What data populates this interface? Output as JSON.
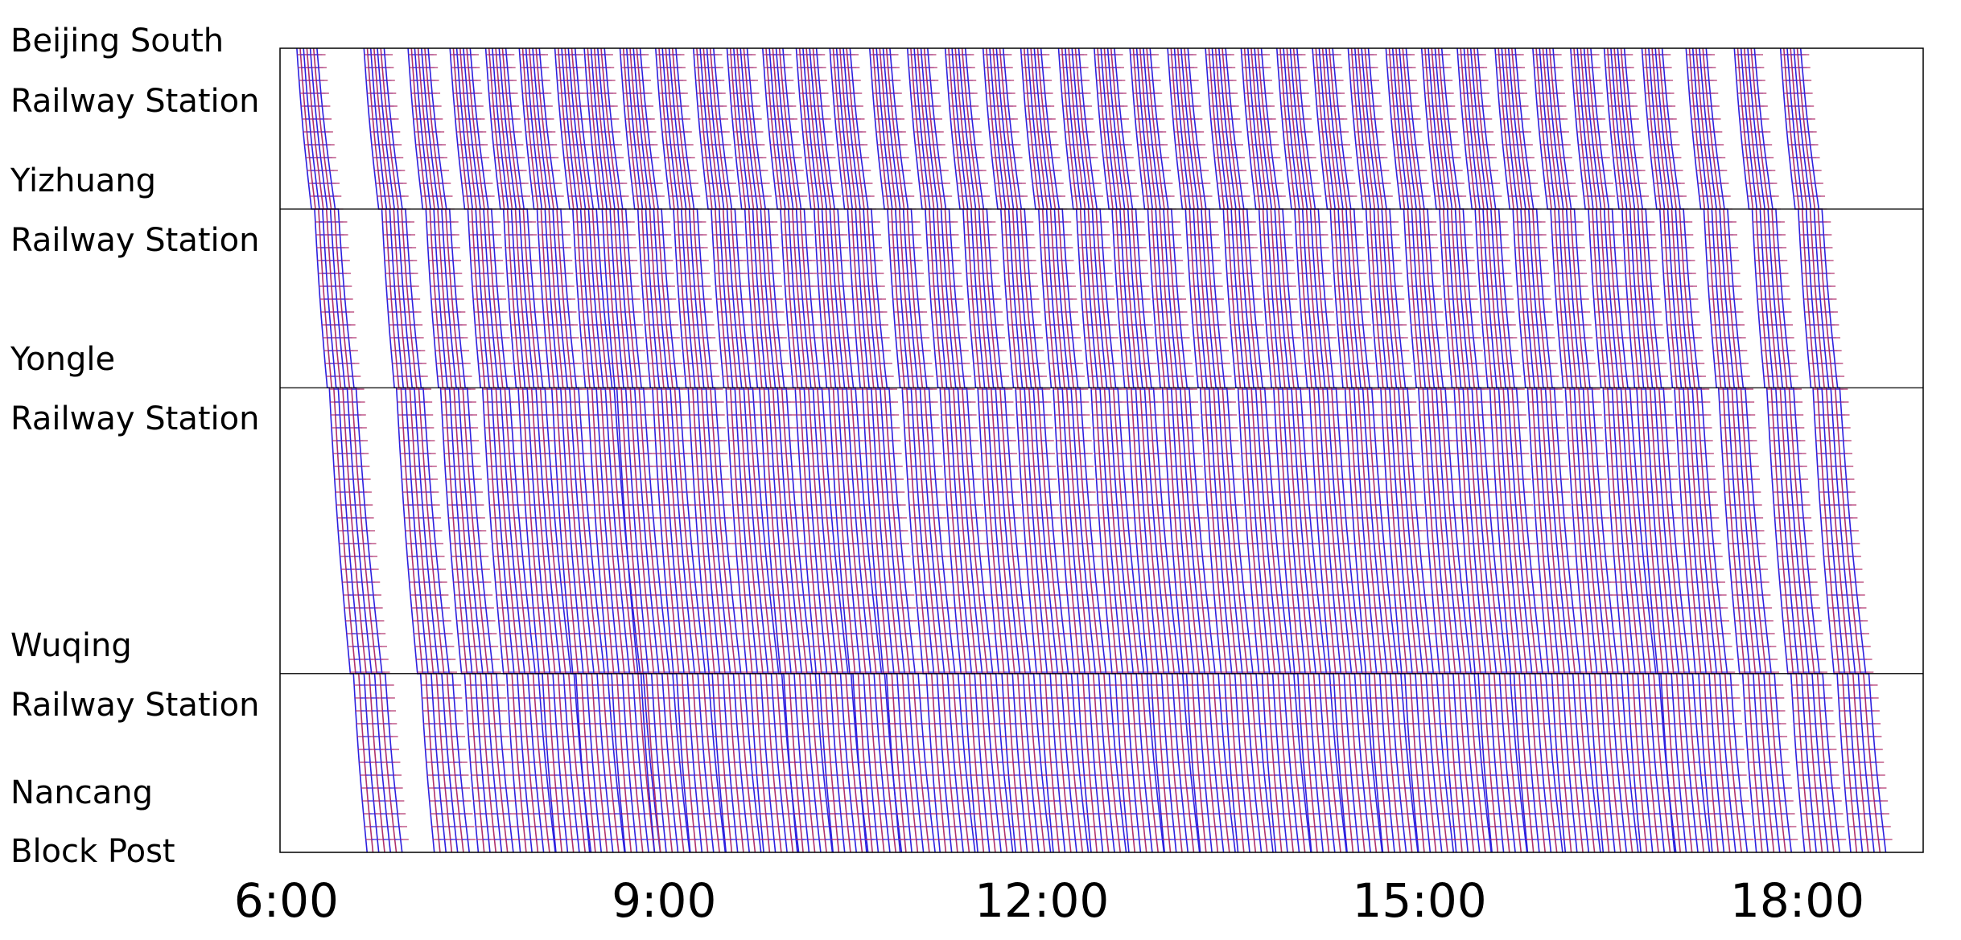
{
  "chart_data": {
    "type": "line",
    "title": "",
    "xlabel": "",
    "ylabel": "",
    "x_ticks": [
      "6:00",
      "9:00",
      "12:00",
      "15:00",
      "18:00"
    ],
    "xlim": [
      "5:57",
      "19:00"
    ],
    "stations": [
      {
        "name": [
          "Beijing South",
          "Railway Station"
        ],
        "km": 0
      },
      {
        "name": [
          "Yizhuang",
          "Railway Station"
        ],
        "km": 18
      },
      {
        "name": [
          "Yongle",
          "Railway Station"
        ],
        "km": 38
      },
      {
        "name": [
          "Wuqing",
          "Railway Station"
        ],
        "km": 70
      },
      {
        "name": [
          "Nancang",
          "Block Post"
        ],
        "km": 90
      }
    ],
    "grid": "station lines only",
    "series_colors": {
      "train_path": "#2b1fe0",
      "train_path_alt": "#b0306a"
    },
    "train_groups_departure_times": [
      "6:05",
      "6:37",
      "6:58",
      "7:18",
      "7:35",
      "7:51",
      "8:08",
      "8:22",
      "8:39",
      "8:56",
      "9:14",
      "9:30",
      "9:47",
      "10:03",
      "10:19",
      "10:38",
      "10:56",
      "11:14",
      "11:32",
      "11:50",
      "12:08",
      "12:25",
      "12:42",
      "13:00",
      "13:18",
      "13:35",
      "13:52",
      "14:09",
      "14:26",
      "14:44",
      "15:01",
      "15:18",
      "15:36",
      "15:54",
      "16:12",
      "16:28",
      "16:46",
      "17:07",
      "17:30",
      "17:52"
    ],
    "trains_per_group": 7
  }
}
